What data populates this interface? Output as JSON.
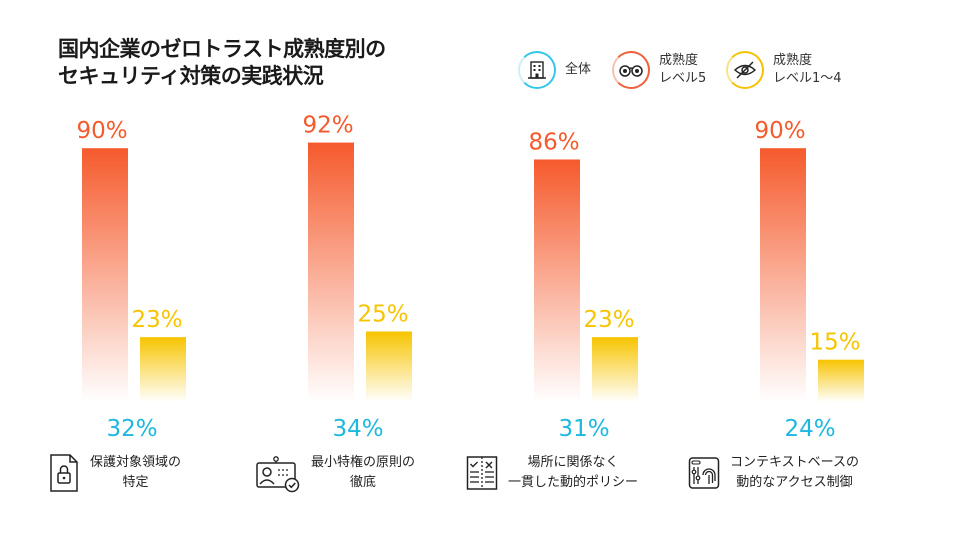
{
  "title": {
    "line1": "国内企業のゼロトラスト成熟度別の",
    "line2": "セキュリティ対策の実践状況"
  },
  "legend": {
    "overall": {
      "label": "全体",
      "icon": "building-icon"
    },
    "level5": {
      "label_line1": "成熟度",
      "label_line2": "レベル5",
      "icon": "binoculars-icon"
    },
    "level1_4": {
      "label_line1": "成熟度",
      "label_line2": "レベル1～4",
      "icon": "eye-slash-icon"
    }
  },
  "colors": {
    "overall": "#1cb8e0",
    "level5": "#f55a2c",
    "level1_4": "#f7c400"
  },
  "chart_data": {
    "type": "bar",
    "title": "国内企業のゼロトラスト成熟度別のセキュリティ対策の実践状況",
    "ylim": [
      0,
      100
    ],
    "categories": [
      {
        "line1": "保護対象領域の",
        "line2": "特定",
        "icon": "lock-document-icon"
      },
      {
        "line1": "最小特権の原則の",
        "line2": "徹底",
        "icon": "user-check-icon"
      },
      {
        "line1": "場所に関係なく",
        "line2": "一貫した動的ポリシー",
        "icon": "checklist-icon"
      },
      {
        "line1": "コンテキストベースの",
        "line2": "動的なアクセス制御",
        "icon": "fingerprint-icon"
      }
    ],
    "series": [
      {
        "name": "成熟度レベル5",
        "values": [
          90,
          92,
          86,
          90
        ],
        "labels": [
          "90%",
          "92%",
          "86%",
          "90%"
        ]
      },
      {
        "name": "成熟度レベル1～4",
        "values": [
          23,
          25,
          23,
          15
        ],
        "labels": [
          "23%",
          "25%",
          "23%",
          "15%"
        ]
      },
      {
        "name": "全体",
        "values": [
          32,
          34,
          31,
          24
        ],
        "labels": [
          "32%",
          "34%",
          "31%",
          "24%"
        ]
      }
    ]
  }
}
